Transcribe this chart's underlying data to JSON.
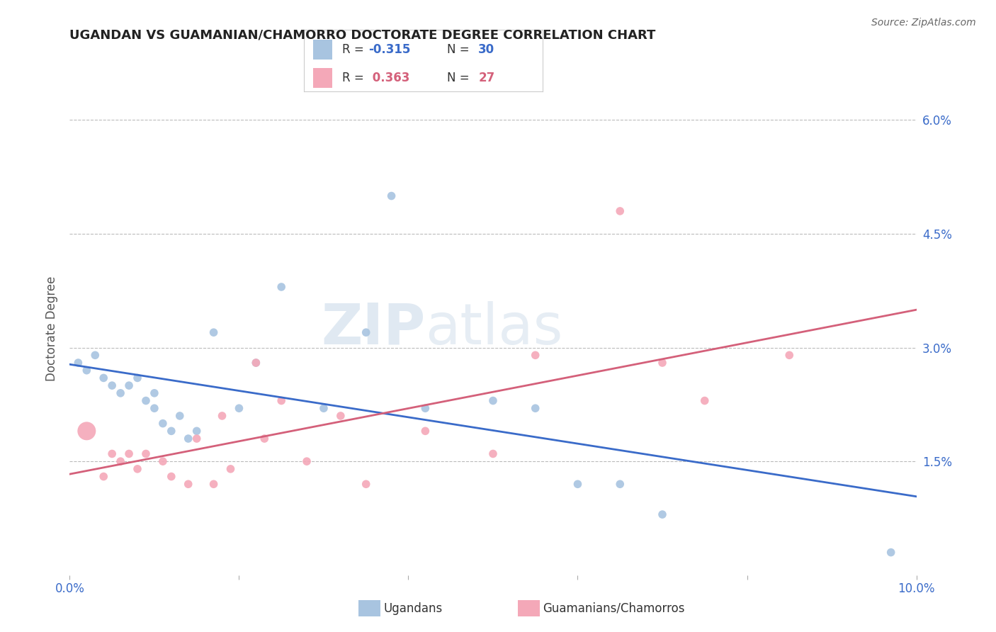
{
  "title": "UGANDAN VS GUAMANIAN/CHAMORRO DOCTORATE DEGREE CORRELATION CHART",
  "source": "Source: ZipAtlas.com",
  "ylabel": "Doctorate Degree",
  "xlim": [
    0.0,
    0.1
  ],
  "ylim": [
    0.0,
    0.065
  ],
  "yticks": [
    0.0,
    0.015,
    0.03,
    0.045,
    0.06
  ],
  "ytick_labels": [
    "",
    "1.5%",
    "3.0%",
    "4.5%",
    "6.0%"
  ],
  "xticks": [
    0.0,
    0.02,
    0.04,
    0.06,
    0.08,
    0.1
  ],
  "xtick_labels": [
    "0.0%",
    "",
    "",
    "",
    "",
    "10.0%"
  ],
  "ugandan_color": "#a8c4e0",
  "guamanian_color": "#f4a8b8",
  "ugandan_line_color": "#3a6bc9",
  "guamanian_line_color": "#d4607a",
  "watermark_zip": "ZIP",
  "watermark_atlas": "atlas",
  "ugandan_x": [
    0.001,
    0.002,
    0.003,
    0.004,
    0.005,
    0.006,
    0.007,
    0.008,
    0.009,
    0.01,
    0.01,
    0.011,
    0.012,
    0.013,
    0.014,
    0.015,
    0.017,
    0.02,
    0.022,
    0.025,
    0.03,
    0.035,
    0.038,
    0.042,
    0.05,
    0.055,
    0.06,
    0.065,
    0.07,
    0.097
  ],
  "ugandan_y": [
    0.028,
    0.027,
    0.029,
    0.026,
    0.025,
    0.024,
    0.025,
    0.026,
    0.023,
    0.022,
    0.024,
    0.02,
    0.019,
    0.021,
    0.018,
    0.019,
    0.032,
    0.022,
    0.028,
    0.038,
    0.022,
    0.032,
    0.05,
    0.022,
    0.023,
    0.022,
    0.012,
    0.012,
    0.008,
    0.003
  ],
  "guamanian_x": [
    0.002,
    0.004,
    0.005,
    0.006,
    0.007,
    0.008,
    0.009,
    0.011,
    0.012,
    0.014,
    0.015,
    0.017,
    0.018,
    0.019,
    0.022,
    0.023,
    0.025,
    0.028,
    0.032,
    0.035,
    0.042,
    0.05,
    0.055,
    0.065,
    0.07,
    0.075,
    0.085
  ],
  "guamanian_y": [
    0.019,
    0.013,
    0.016,
    0.015,
    0.016,
    0.014,
    0.016,
    0.015,
    0.013,
    0.012,
    0.018,
    0.012,
    0.021,
    0.014,
    0.028,
    0.018,
    0.023,
    0.015,
    0.021,
    0.012,
    0.019,
    0.016,
    0.029,
    0.048,
    0.028,
    0.023,
    0.029
  ],
  "ugandan_sizes": [
    70,
    70,
    70,
    70,
    70,
    70,
    70,
    70,
    70,
    70,
    70,
    70,
    70,
    70,
    70,
    70,
    70,
    70,
    70,
    70,
    70,
    70,
    70,
    70,
    70,
    70,
    70,
    70,
    70,
    70
  ],
  "guamanian_sizes": [
    350,
    70,
    70,
    70,
    70,
    70,
    70,
    70,
    70,
    70,
    70,
    70,
    70,
    70,
    70,
    70,
    70,
    70,
    70,
    70,
    70,
    70,
    70,
    70,
    70,
    70,
    70
  ]
}
